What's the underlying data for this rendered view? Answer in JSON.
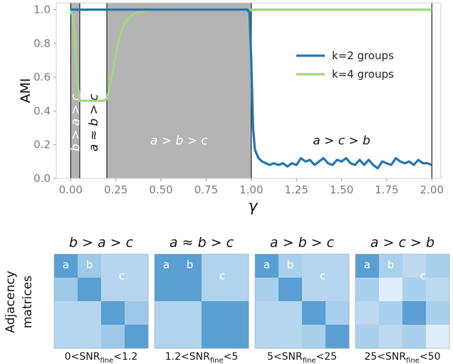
{
  "chart_data": {
    "type": "line",
    "ylabel": "AMI",
    "xlabel": "γ",
    "xlim": [
      -0.08,
      2.05
    ],
    "ylim": [
      0.0,
      1.04
    ],
    "xticks": [
      "0.00",
      "0.25",
      "0.50",
      "0.75",
      "1.00",
      "1.25",
      "1.50",
      "1.75",
      "2.00"
    ],
    "yticks": [
      "0.0",
      "0.2",
      "0.4",
      "0.6",
      "0.8",
      "1.0"
    ],
    "legend_position": "right",
    "regions": [
      {
        "x0": 0.0,
        "x1": 0.05,
        "shaded": true,
        "label": "b > a > c",
        "label_color": "#ffffff",
        "orientation": "vertical"
      },
      {
        "x0": 0.05,
        "x1": 0.2,
        "shaded": false,
        "label": "a ≈ b > c",
        "label_color": "#111111",
        "orientation": "vertical"
      },
      {
        "x0": 0.2,
        "x1": 1.0,
        "shaded": true,
        "label": "a > b > c",
        "label_color": "#ffffff",
        "orientation": "horizontal"
      },
      {
        "x0": 1.0,
        "x1": 2.0,
        "shaded": false,
        "label": "a > c > b",
        "label_color": "#111111",
        "orientation": "horizontal"
      }
    ],
    "series": [
      {
        "name": "k=2 groups",
        "color": "#2176b4",
        "x": [
          0.0,
          0.1,
          0.2,
          0.3,
          0.4,
          0.5,
          0.6,
          0.7,
          0.8,
          0.9,
          0.98,
          0.99,
          1.0,
          1.01,
          1.02,
          1.04,
          1.06,
          1.08,
          1.1,
          1.125,
          1.15,
          1.175,
          1.2,
          1.225,
          1.25,
          1.275,
          1.3,
          1.325,
          1.35,
          1.375,
          1.4,
          1.425,
          1.45,
          1.475,
          1.5,
          1.525,
          1.55,
          1.575,
          1.6,
          1.625,
          1.65,
          1.675,
          1.7,
          1.725,
          1.75,
          1.775,
          1.8,
          1.825,
          1.85,
          1.875,
          1.9,
          1.925,
          1.95,
          1.975,
          2.0
        ],
        "y": [
          1.0,
          1.0,
          1.0,
          1.0,
          1.0,
          1.0,
          1.0,
          1.0,
          1.0,
          1.0,
          1.0,
          0.98,
          0.7,
          0.3,
          0.17,
          0.12,
          0.1,
          0.09,
          0.08,
          0.09,
          0.08,
          0.09,
          0.07,
          0.09,
          0.08,
          0.12,
          0.1,
          0.11,
          0.08,
          0.1,
          0.12,
          0.09,
          0.08,
          0.11,
          0.1,
          0.12,
          0.09,
          0.08,
          0.11,
          0.08,
          0.11,
          0.08,
          0.06,
          0.1,
          0.09,
          0.08,
          0.12,
          0.1,
          0.09,
          0.1,
          0.08,
          0.11,
          0.09,
          0.09,
          0.08
        ]
      },
      {
        "name": "k=4 groups",
        "color": "#9fd87e",
        "x": [
          0.0,
          0.01,
          0.02,
          0.03,
          0.04,
          0.05,
          0.07,
          0.1,
          0.13,
          0.16,
          0.18,
          0.2,
          0.22,
          0.24,
          0.26,
          0.28,
          0.3,
          0.33,
          0.36,
          0.4,
          0.45,
          0.5,
          0.6,
          0.7,
          0.8,
          1.0,
          1.5,
          2.0
        ],
        "y": [
          1.0,
          0.96,
          0.86,
          0.7,
          0.55,
          0.46,
          0.46,
          0.46,
          0.46,
          0.46,
          0.46,
          0.47,
          0.56,
          0.68,
          0.79,
          0.87,
          0.92,
          0.96,
          0.98,
          0.99,
          1.0,
          1.0,
          1.0,
          1.0,
          1.0,
          1.0,
          1.0,
          1.0
        ]
      }
    ]
  },
  "matrices": {
    "ylabel_line1": "Adjacency",
    "ylabel_line2": "matrices",
    "panels": [
      {
        "title": "b > a > c",
        "snr_pre": "0<SNR",
        "snr_sub": "fine",
        "snr_post": "<1.2",
        "labels": [
          "a",
          "b",
          "c"
        ]
      },
      {
        "title": "a ≈ b > c",
        "snr_pre": "1.2<SNR",
        "snr_sub": "fine",
        "snr_post": "<5",
        "labels": [
          "a",
          "b",
          "c"
        ]
      },
      {
        "title": "a > b > c",
        "snr_pre": "5<SNR",
        "snr_sub": "fine",
        "snr_post": "<25",
        "labels": [
          "a",
          "b",
          "c"
        ]
      },
      {
        "title": "a > c > b",
        "snr_pre": "25<SNR",
        "snr_sub": "fine",
        "snr_post": "<50",
        "labels": [
          "a",
          "b",
          "c"
        ]
      }
    ]
  }
}
